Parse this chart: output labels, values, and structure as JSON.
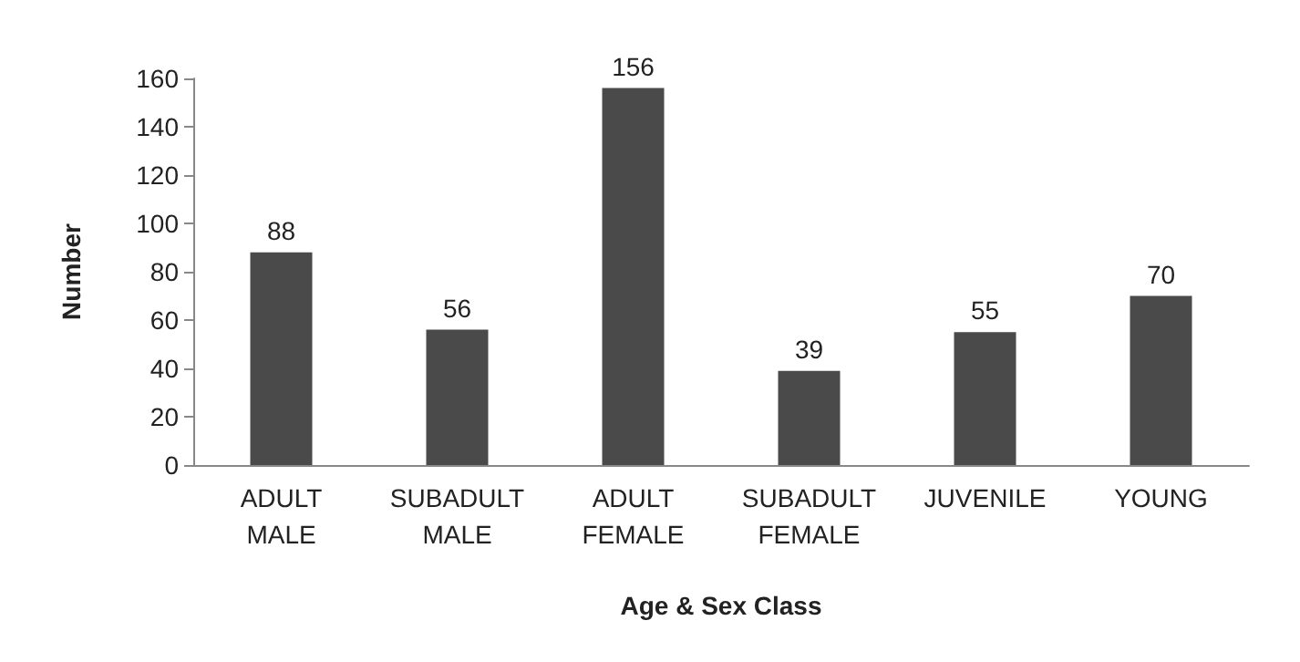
{
  "chart_data": {
    "type": "bar",
    "xlabel": "Age & Sex Class",
    "ylabel": "Number",
    "categories": [
      "ADULT MALE",
      "SUBADULT MALE",
      "ADULT FEMALE",
      "SUBADULT FEMALE",
      "JUVENILE",
      "YOUNG"
    ],
    "values": [
      88,
      56,
      156,
      39,
      55,
      70
    ],
    "color": "#4a4a4a",
    "ylim": [
      0,
      160
    ],
    "yticks": [
      0,
      20,
      40,
      60,
      80,
      100,
      120,
      140,
      160
    ],
    "grid": false,
    "data_labels": true
  }
}
